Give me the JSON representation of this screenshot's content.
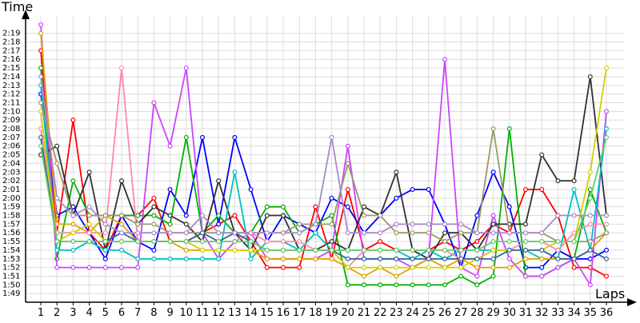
{
  "chart_data": {
    "type": "line",
    "ylabel": "Time",
    "xlabel": "Laps",
    "x": [
      1,
      2,
      3,
      4,
      5,
      6,
      7,
      8,
      9,
      10,
      11,
      12,
      13,
      14,
      15,
      16,
      17,
      18,
      19,
      20,
      21,
      22,
      23,
      24,
      25,
      26,
      27,
      28,
      29,
      30,
      31,
      32,
      33,
      34,
      35,
      36
    ],
    "y_ticks": [
      "1:49",
      "1:50",
      "1:51",
      "1:52",
      "1:53",
      "1:54",
      "1:55",
      "1:56",
      "1:57",
      "1:58",
      "1:59",
      "2:00",
      "2:01",
      "2:02",
      "2:03",
      "2:04",
      "2:05",
      "2:06",
      "2:07",
      "2:08",
      "2:09",
      "2:10",
      "2:11",
      "2:12",
      "2:13",
      "2:14",
      "2:15",
      "2:16",
      "2:17",
      "2:18",
      "2:19"
    ],
    "y_ticks_seconds": [
      109,
      110,
      111,
      112,
      113,
      114,
      115,
      116,
      117,
      118,
      119,
      120,
      121,
      122,
      123,
      124,
      125,
      126,
      127,
      128,
      129,
      130,
      131,
      132,
      133,
      134,
      135,
      136,
      137,
      138,
      139
    ],
    "ylim_seconds": [
      108,
      141
    ],
    "grid": true,
    "legend": "none",
    "series": [
      {
        "color": "#ff0000",
        "values": [
          137,
          116,
          129,
          116,
          114,
          118,
          118,
          120,
          115,
          115,
          116,
          117,
          118,
          115,
          112,
          112,
          112,
          119,
          113,
          121,
          114,
          115,
          114,
          114,
          114,
          115,
          114,
          115,
          117,
          116,
          121,
          121,
          118,
          112,
          112,
          111
        ]
      },
      {
        "color": "#0000ff",
        "values": [
          132,
          118,
          119,
          116,
          113,
          118,
          115,
          114,
          121,
          118,
          127,
          117,
          127,
          121,
          115,
          118,
          117,
          116,
          120,
          119,
          116,
          118,
          120,
          121,
          121,
          117,
          112,
          118,
          123,
          119,
          112,
          112,
          114,
          113,
          113,
          114
        ]
      },
      {
        "color": "#00b000",
        "values": [
          135,
          113,
          122,
          118,
          118,
          118,
          118,
          118,
          117,
          127,
          116,
          118,
          116,
          116,
          119,
          119,
          116,
          117,
          118,
          110,
          110,
          110,
          110,
          110,
          110,
          110,
          111,
          110,
          111,
          128,
          111,
          111,
          112,
          113,
          121,
          116
        ]
      },
      {
        "color": "#cc44ff",
        "values": [
          140,
          112,
          112,
          112,
          112,
          112,
          112,
          131,
          126,
          135,
          116,
          113,
          115,
          116,
          113,
          113,
          113,
          113,
          114,
          126,
          113,
          113,
          113,
          112,
          113,
          136,
          112,
          111,
          118,
          113,
          111,
          111,
          112,
          113,
          110,
          130
        ]
      },
      {
        "color": "#303030",
        "values": [
          125,
          126,
          118,
          123,
          114,
          122,
          117,
          119,
          118,
          117,
          115,
          122,
          116,
          114,
          118,
          118,
          114,
          114,
          115,
          114,
          119,
          118,
          123,
          114,
          113,
          116,
          116,
          114,
          117,
          117,
          117,
          125,
          122,
          122,
          134,
          118
        ]
      },
      {
        "color": "#00c0c0",
        "values": [
          133,
          114,
          114,
          115,
          114,
          114,
          113,
          113,
          113,
          113,
          113,
          113,
          123,
          113,
          115,
          115,
          114,
          116,
          114,
          114,
          114,
          114,
          114,
          113,
          114,
          113,
          114,
          114,
          114,
          114,
          114,
          113,
          113,
          121,
          114,
          128
        ]
      },
      {
        "color": "#e0a000",
        "values": [
          139,
          117,
          117,
          116,
          118,
          117,
          115,
          115,
          115,
          114,
          114,
          114,
          114,
          114,
          113,
          113,
          113,
          113,
          113,
          112,
          111,
          112,
          111,
          112,
          113,
          112,
          113,
          112,
          112,
          112,
          113,
          113,
          113,
          113,
          114,
          116
        ]
      },
      {
        "color": "#ff88aa",
        "values": [
          128,
          116,
          116,
          116,
          116,
          135,
          115,
          115,
          115,
          115,
          115,
          115,
          115,
          116,
          115,
          115,
          115,
          114,
          114,
          112,
          114,
          114,
          114,
          114,
          114,
          114,
          113,
          113,
          114,
          114,
          115,
          115,
          114,
          116,
          117,
          117
        ]
      },
      {
        "color": "#d0d000",
        "values": [
          130,
          115,
          116,
          117,
          115,
          115,
          115,
          115,
          115,
          115,
          114,
          114,
          114,
          114,
          114,
          114,
          114,
          114,
          114,
          112,
          112,
          112,
          112,
          112,
          112,
          112,
          112,
          113,
          114,
          114,
          114,
          114,
          115,
          115,
          123,
          135
        ]
      },
      {
        "color": "#999966",
        "values": [
          131,
          124,
          118,
          118,
          118,
          118,
          117,
          117,
          116,
          116,
          116,
          116,
          116,
          116,
          116,
          116,
          117,
          117,
          117,
          124,
          118,
          118,
          116,
          116,
          116,
          115,
          116,
          116,
          128,
          116,
          116,
          116,
          115,
          115,
          115,
          116
        ]
      },
      {
        "color": "#336699",
        "values": [
          127,
          115,
          115,
          115,
          115,
          116,
          115,
          115,
          115,
          115,
          116,
          115,
          116,
          115,
          114,
          114,
          114,
          114,
          114,
          113,
          113,
          113,
          113,
          113,
          113,
          113,
          113,
          113,
          113,
          114,
          114,
          114,
          113,
          113,
          114,
          113
        ]
      },
      {
        "color": "#aa88cc",
        "values": [
          134,
          120,
          118,
          119,
          117,
          116,
          116,
          116,
          116,
          116,
          118,
          116,
          116,
          116,
          116,
          116,
          116,
          117,
          127,
          116,
          116,
          116,
          117,
          117,
          117,
          117,
          117,
          116,
          116,
          116,
          116,
          116,
          118,
          118,
          118,
          118
        ]
      },
      {
        "color": "#66cc66",
        "values": [
          126,
          115,
          115,
          115,
          115,
          115,
          115,
          115,
          115,
          115,
          115,
          115,
          115,
          115,
          114,
          114,
          114,
          114,
          114,
          114,
          114,
          114,
          114,
          114,
          114,
          114,
          114,
          114,
          115,
          115,
          115,
          115,
          115,
          115,
          120,
          127
        ]
      }
    ]
  }
}
